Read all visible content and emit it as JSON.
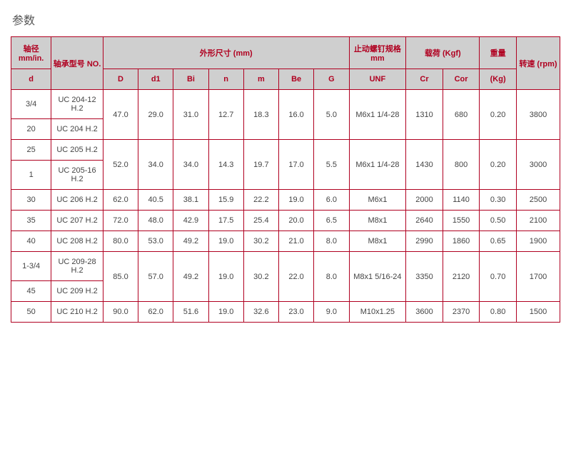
{
  "title": "参数",
  "style": {
    "border_color": "#b00020",
    "header_bg": "#cfcfcf",
    "header_text_color": "#b00020",
    "body_text_color": "#444444",
    "title_color": "#555555",
    "font_size_cell": 11,
    "font_size_title": 16
  },
  "headers": {
    "shaft_dia": "轴径 mm/in.",
    "bearing_no": "轴承型号 NO.",
    "dimensions": "外形尺寸 (mm)",
    "setscrew": "止动螺钉规格 mm",
    "load": "载荷 (Kgf)",
    "weight": "重量",
    "speed": "转速 (rpm)",
    "d": "d",
    "D": "D",
    "d1": "d1",
    "Bi": "Bi",
    "n": "n",
    "m": "m",
    "Be": "Be",
    "G": "G",
    "UNF": "UNF",
    "Cr": "Cr",
    "Cor": "Cor",
    "Kg": "(Kg)"
  },
  "rows": [
    {
      "d": [
        "3/4",
        "20"
      ],
      "no": [
        "UC 204-12 H.2",
        "UC 204 H.2"
      ],
      "D": "47.0",
      "d1": "29.0",
      "Bi": "31.0",
      "n": "12.7",
      "m": "18.3",
      "Be": "16.0",
      "G": "5.0",
      "UNF": "M6x1 1/4-28",
      "Cr": "1310",
      "Cor": "680",
      "Kg": "0.20",
      "rpm": "3800"
    },
    {
      "d": [
        "25",
        "1"
      ],
      "no": [
        "UC 205 H.2",
        "UC 205-16 H.2"
      ],
      "D": "52.0",
      "d1": "34.0",
      "Bi": "34.0",
      "n": "14.3",
      "m": "19.7",
      "Be": "17.0",
      "G": "5.5",
      "UNF": "M6x1 1/4-28",
      "Cr": "1430",
      "Cor": "800",
      "Kg": "0.20",
      "rpm": "3000"
    },
    {
      "d": [
        "30"
      ],
      "no": [
        "UC 206 H.2"
      ],
      "D": "62.0",
      "d1": "40.5",
      "Bi": "38.1",
      "n": "15.9",
      "m": "22.2",
      "Be": "19.0",
      "G": "6.0",
      "UNF": "M6x1",
      "Cr": "2000",
      "Cor": "1140",
      "Kg": "0.30",
      "rpm": "2500"
    },
    {
      "d": [
        "35"
      ],
      "no": [
        "UC 207 H.2"
      ],
      "D": "72.0",
      "d1": "48.0",
      "Bi": "42.9",
      "n": "17.5",
      "m": "25.4",
      "Be": "20.0",
      "G": "6.5",
      "UNF": "M8x1",
      "Cr": "2640",
      "Cor": "1550",
      "Kg": "0.50",
      "rpm": "2100"
    },
    {
      "d": [
        "40"
      ],
      "no": [
        "UC 208 H.2"
      ],
      "D": "80.0",
      "d1": "53.0",
      "Bi": "49.2",
      "n": "19.0",
      "m": "30.2",
      "Be": "21.0",
      "G": "8.0",
      "UNF": "M8x1",
      "Cr": "2990",
      "Cor": "1860",
      "Kg": "0.65",
      "rpm": "1900"
    },
    {
      "d": [
        "1-3/4",
        "45"
      ],
      "no": [
        "UC 209-28 H.2",
        "UC 209 H.2"
      ],
      "D": "85.0",
      "d1": "57.0",
      "Bi": "49.2",
      "n": "19.0",
      "m": "30.2",
      "Be": "22.0",
      "G": "8.0",
      "UNF": "M8x1 5/16-24",
      "Cr": "3350",
      "Cor": "2120",
      "Kg": "0.70",
      "rpm": "1700"
    },
    {
      "d": [
        "50"
      ],
      "no": [
        "UC 210 H.2"
      ],
      "D": "90.0",
      "d1": "62.0",
      "Bi": "51.6",
      "n": "19.0",
      "m": "32.6",
      "Be": "23.0",
      "G": "9.0",
      "UNF": "M10x1.25",
      "Cr": "3600",
      "Cor": "2370",
      "Kg": "0.80",
      "rpm": "1500"
    }
  ]
}
